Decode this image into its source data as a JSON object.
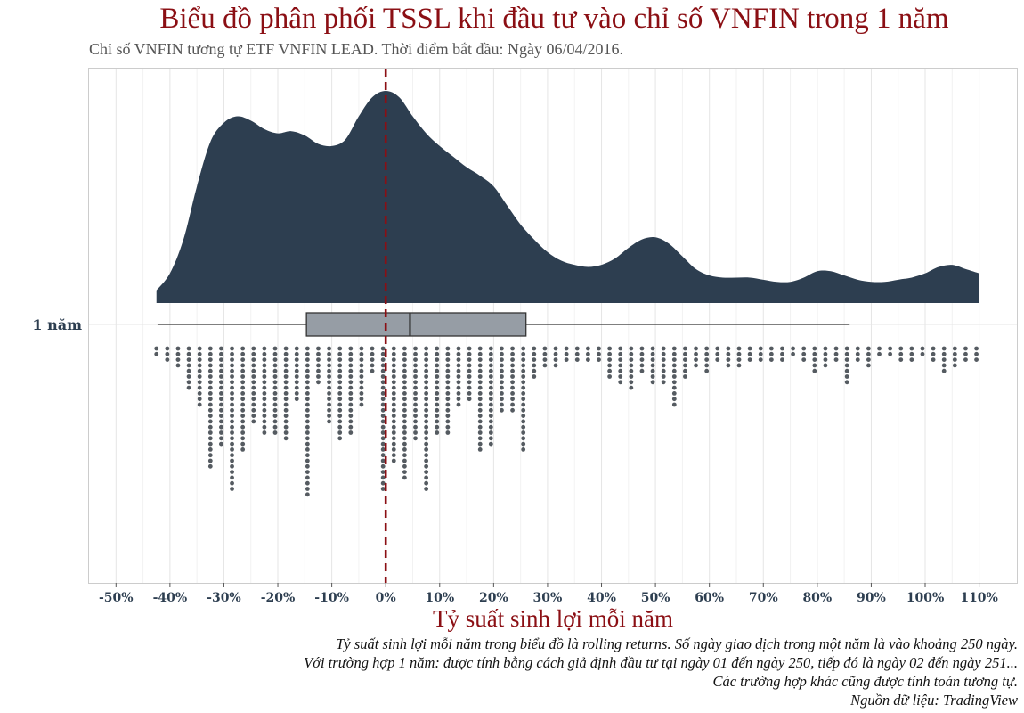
{
  "title": "Biểu đồ phân phối TSSL khi đầu tư vào chỉ số VNFIN trong 1 năm",
  "subtitle": "Chỉ số VNFIN tương tự ETF VNFIN LEAD. Thời điểm bắt đầu: Ngày 06/04/2016.",
  "caption": [
    "Tỷ suất sinh lợi mỗi năm trong biểu đồ là rolling returns. Số ngày giao dịch trong một năm là vào khoảng 250 ngày.",
    "Với trường hợp 1 năm: được tính bằng cách giả định đầu tư tại ngày 01 đến ngày 250, tiếp đó là ngày 02 đến ngày 251...",
    "Các trường hợp khác cũng được tính toán tương tự.",
    "Nguồn dữ liệu: TradingView"
  ],
  "chart_data": {
    "type": "raincloud",
    "title": "Biểu đồ phân phối TSSL khi đầu tư vào chỉ số VNFIN trong 1 năm",
    "xlabel": "Tỷ suất sinh lợi mỗi năm",
    "ylabel": "",
    "category": "1 năm",
    "xlim": [
      -55,
      117
    ],
    "x_ticks": [
      -50,
      -40,
      -30,
      -20,
      -10,
      0,
      10,
      20,
      30,
      40,
      50,
      60,
      70,
      80,
      90,
      100,
      110
    ],
    "x_tick_labels": [
      "-50%",
      "-40%",
      "-30%",
      "-20%",
      "-10%",
      "0%",
      "10%",
      "20%",
      "30%",
      "40%",
      "50%",
      "60%",
      "70%",
      "80%",
      "90%",
      "100%",
      "110%"
    ],
    "reference_line": 0,
    "density": {
      "x": [
        -42.5,
        -40,
        -37.5,
        -35,
        -32.5,
        -30,
        -27.5,
        -25,
        -22.5,
        -20,
        -17.5,
        -15,
        -12.5,
        -10,
        -7.5,
        -5,
        -2.5,
        0,
        2.5,
        5,
        7.5,
        10,
        12.5,
        15,
        17.5,
        20,
        22.5,
        25,
        27.5,
        30,
        32.5,
        35,
        37.5,
        40,
        42.5,
        45,
        47.5,
        50,
        52.5,
        55,
        57.5,
        60,
        62.5,
        65,
        67.5,
        70,
        72.5,
        75,
        77.5,
        80,
        82.5,
        85,
        87.5,
        90,
        92.5,
        95,
        97.5,
        100,
        102.5,
        105,
        107.5,
        110
      ],
      "y": [
        0.06,
        0.14,
        0.3,
        0.55,
        0.76,
        0.85,
        0.88,
        0.86,
        0.82,
        0.8,
        0.81,
        0.79,
        0.75,
        0.74,
        0.77,
        0.88,
        0.97,
        1.0,
        0.97,
        0.88,
        0.8,
        0.74,
        0.69,
        0.64,
        0.6,
        0.55,
        0.46,
        0.37,
        0.3,
        0.24,
        0.2,
        0.18,
        0.17,
        0.18,
        0.21,
        0.26,
        0.3,
        0.31,
        0.28,
        0.22,
        0.16,
        0.13,
        0.12,
        0.12,
        0.12,
        0.11,
        0.1,
        0.1,
        0.12,
        0.15,
        0.15,
        0.13,
        0.11,
        0.1,
        0.1,
        0.11,
        0.12,
        0.14,
        0.17,
        0.18,
        0.16,
        0.14
      ]
    },
    "boxplot": {
      "whisker_low": -42.3,
      "q1": -14.7,
      "median": 4.5,
      "q3": 26,
      "whisker_high": 86
    },
    "dots": {
      "x": [
        -42.5,
        -40.5,
        -38.5,
        -36.5,
        -34.5,
        -32.5,
        -30.5,
        -28.5,
        -26.5,
        -24.5,
        -22.5,
        -20.5,
        -18.5,
        -16.5,
        -14.5,
        -12.5,
        -10.5,
        -8.5,
        -6.5,
        -4.5,
        -2.5,
        -0.5,
        1.5,
        3.5,
        5.5,
        7.5,
        9.5,
        11.5,
        13.5,
        15.5,
        17.5,
        19.5,
        21.5,
        23.5,
        25.5,
        27.5,
        29.5,
        31.5,
        33.5,
        35.5,
        37.5,
        39.5,
        41.5,
        43.5,
        45.5,
        47.5,
        49.5,
        51.5,
        53.5,
        55.5,
        57.5,
        59.5,
        61.5,
        63.5,
        65.5,
        67.5,
        69.5,
        71.5,
        73.5,
        75.5,
        77.5,
        79.5,
        81.5,
        83.5,
        85.5,
        87.5,
        89.5,
        91.5,
        93.5,
        95.5,
        97.5,
        99.5,
        101.5,
        103.5,
        105.5,
        107.5,
        109.5
      ],
      "counts": [
        2,
        3,
        4,
        8,
        11,
        22,
        18,
        26,
        19,
        14,
        16,
        16,
        17,
        10,
        27,
        7,
        14,
        17,
        16,
        11,
        5,
        26,
        21,
        24,
        17,
        26,
        16,
        16,
        11,
        10,
        19,
        18,
        12,
        12,
        19,
        6,
        4,
        4,
        3,
        3,
        3,
        3,
        6,
        7,
        8,
        5,
        7,
        7,
        11,
        6,
        4,
        5,
        3,
        4,
        4,
        3,
        3,
        3,
        3,
        2,
        3,
        5,
        4,
        3,
        7,
        3,
        4,
        2,
        2,
        3,
        3,
        2,
        3,
        5,
        4,
        3,
        3
      ]
    },
    "colors": {
      "density": "#2d3e50",
      "box_fill": "#969da5",
      "box_stroke": "#333333",
      "dots": "#555b61",
      "reference_line": "#8b0f14",
      "title": "#8b0f14",
      "axis_text": "#2d3e50"
    }
  }
}
